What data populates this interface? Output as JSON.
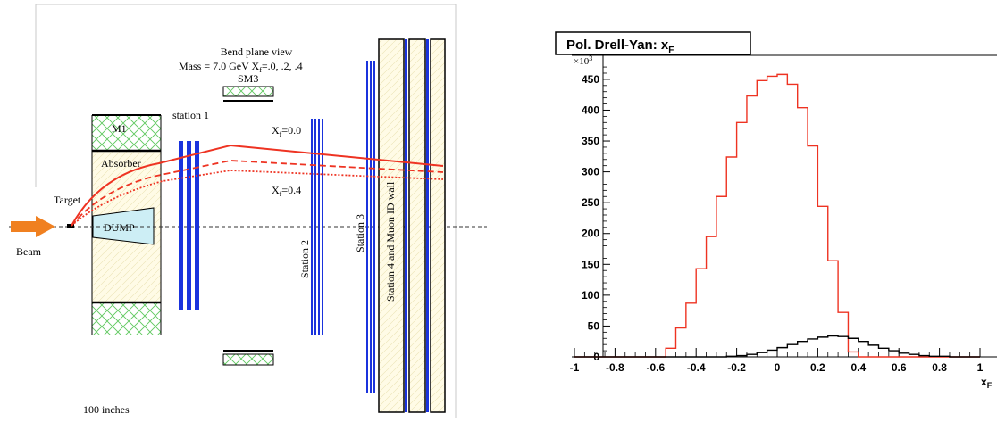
{
  "diagram": {
    "header_line1": "Bend plane view",
    "header_line2_prefix": "Mass = 7.0 GeV  X",
    "header_line2_sub": "f",
    "header_line2_suffix": "=.0, .2, .4",
    "sm3_label": "SM3",
    "m1_label": "M1",
    "absorber_label": "Absorber",
    "target_label": "Target",
    "dump_label": "DUMP",
    "beam_label": "Beam",
    "station1_label": "station 1",
    "station2_label": "Station 2",
    "station3_label": "Station 3",
    "station4_label": "Station 4 and Muon ID wall",
    "xf0_prefix": "X",
    "xf0_sub": "f",
    "xf0_suffix": "=0.0",
    "xf4_prefix": "X",
    "xf4_sub": "f",
    "xf4_suffix": "=0.4",
    "scale_label": "100 inches",
    "colors": {
      "track": "#ee3322",
      "station": "#1a33dd",
      "hatch": "#5ec85e",
      "absorber_fill": "#fffbe6",
      "dump_fill": "#cdeef5",
      "beam_arrow": "#f08020"
    }
  },
  "chart_data": {
    "type": "histogram",
    "title_prefix": "Pol. Drell-Yan: x",
    "title_sub": "F",
    "xlabel_prefix": "x",
    "xlabel_sub": "F",
    "ylabel": "",
    "y_multiplier_prefix": "×10",
    "y_multiplier_exp": "3",
    "xlim": [
      -1,
      1
    ],
    "ylim": [
      0,
      480
    ],
    "x_ticks": [
      -1,
      -0.8,
      -0.6,
      -0.4,
      -0.2,
      0,
      0.2,
      0.4,
      0.6,
      0.8,
      1
    ],
    "x_tick_labels": [
      "-1",
      "-0.8",
      "-0.6",
      "-0.4",
      "-0.2",
      "0",
      "0.2",
      "0.4",
      "0.6",
      "0.8",
      "1"
    ],
    "y_ticks": [
      0,
      50,
      100,
      150,
      200,
      250,
      300,
      350,
      400,
      450
    ],
    "y_tick_labels": [
      "0",
      "50",
      "100",
      "150",
      "200",
      "250",
      "300",
      "350",
      "400",
      "450"
    ],
    "bin_edges": [
      -1,
      -0.95,
      -0.9,
      -0.85,
      -0.8,
      -0.75,
      -0.7,
      -0.65,
      -0.6,
      -0.55,
      -0.5,
      -0.45,
      -0.4,
      -0.35,
      -0.3,
      -0.25,
      -0.2,
      -0.15,
      -0.1,
      -0.05,
      0,
      0.05,
      0.1,
      0.15,
      0.2,
      0.25,
      0.3,
      0.35,
      0.4,
      0.45,
      0.5,
      0.55,
      0.6,
      0.65,
      0.7,
      0.75,
      0.8,
      0.85,
      0.9,
      0.95,
      1
    ],
    "series": [
      {
        "color": "#ee3322",
        "values": [
          0,
          0,
          0,
          0,
          0,
          0,
          0,
          0,
          0,
          14,
          47,
          87,
          143,
          195,
          260,
          324,
          380,
          423,
          448,
          455,
          458,
          442,
          404,
          342,
          244,
          156,
          72,
          8,
          0,
          0,
          0,
          0,
          0,
          0,
          0,
          0,
          0,
          0,
          0,
          0
        ]
      },
      {
        "color": "#000000",
        "values": [
          0,
          0,
          0,
          0,
          0,
          0,
          0,
          0,
          0,
          0,
          0,
          0,
          0,
          0,
          0,
          1,
          2,
          4,
          7,
          11,
          15,
          20,
          25,
          29,
          32,
          34,
          33,
          30,
          25,
          19,
          14,
          10,
          6,
          4,
          2,
          1,
          1,
          0,
          0,
          0
        ]
      }
    ]
  }
}
